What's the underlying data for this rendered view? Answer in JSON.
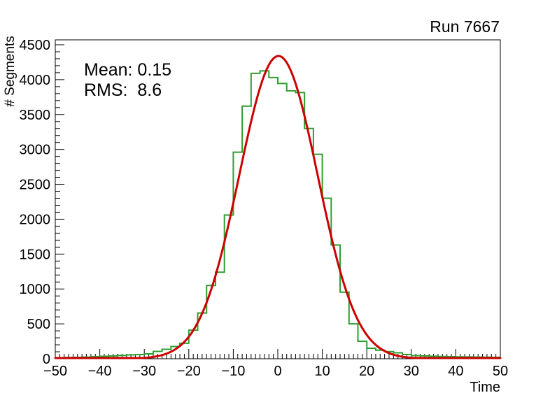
{
  "title": "Run 7667",
  "stats": {
    "mean_label": "Mean: 0.15",
    "rms_label": "RMS:  8.6"
  },
  "axes": {
    "x": {
      "title": "Time",
      "min": -50,
      "max": 50,
      "major_ticks": [
        -50,
        -40,
        -30,
        -20,
        -10,
        0,
        10,
        20,
        30,
        40,
        50
      ],
      "tick_labels": [
        "−50",
        "−40",
        "−30",
        "−20",
        "−10",
        "0",
        "10",
        "20",
        "30",
        "40",
        "50"
      ],
      "minor_tick_step": 1
    },
    "y": {
      "title": "# Segments",
      "min": 0,
      "max": 4570,
      "major_ticks": [
        0,
        500,
        1000,
        1500,
        2000,
        2500,
        3000,
        3500,
        4000,
        4500
      ],
      "tick_labels": [
        "0",
        "500",
        "1000",
        "1500",
        "2000",
        "2500",
        "3000",
        "3500",
        "4000",
        "4500"
      ],
      "minor_tick_step": 100
    }
  },
  "colors": {
    "histogram": "#2f9e30",
    "fit": "#cc0000",
    "frame": "#000000",
    "background": "#ffffff",
    "text": "#000000"
  },
  "chart_data": {
    "type": "histogram+fit",
    "title": "Run 7667",
    "xlabel": "Time",
    "ylabel": "# Segments",
    "xlim": [
      -50,
      50
    ],
    "ylim": [
      0,
      4570
    ],
    "grid": false,
    "legend": "none",
    "histogram": {
      "bin_start": -50,
      "bin_width": 2,
      "bin_values": [
        15,
        17,
        20,
        24,
        30,
        35,
        40,
        48,
        55,
        60,
        70,
        105,
        135,
        175,
        222,
        410,
        655,
        1050,
        1240,
        2060,
        2960,
        3620,
        4090,
        4125,
        4030,
        3945,
        3840,
        3815,
        3300,
        2930,
        2300,
        1630,
        955,
        500,
        250,
        150,
        123,
        103,
        85,
        60,
        45,
        40,
        36,
        33,
        30,
        28,
        26,
        24,
        22,
        20
      ]
    },
    "fit": {
      "shape": "gaussian",
      "amplitude": 4340,
      "mean": 0.15,
      "sigma": 8.8,
      "reported_mean": 0.15,
      "reported_rms": 8.6
    }
  }
}
